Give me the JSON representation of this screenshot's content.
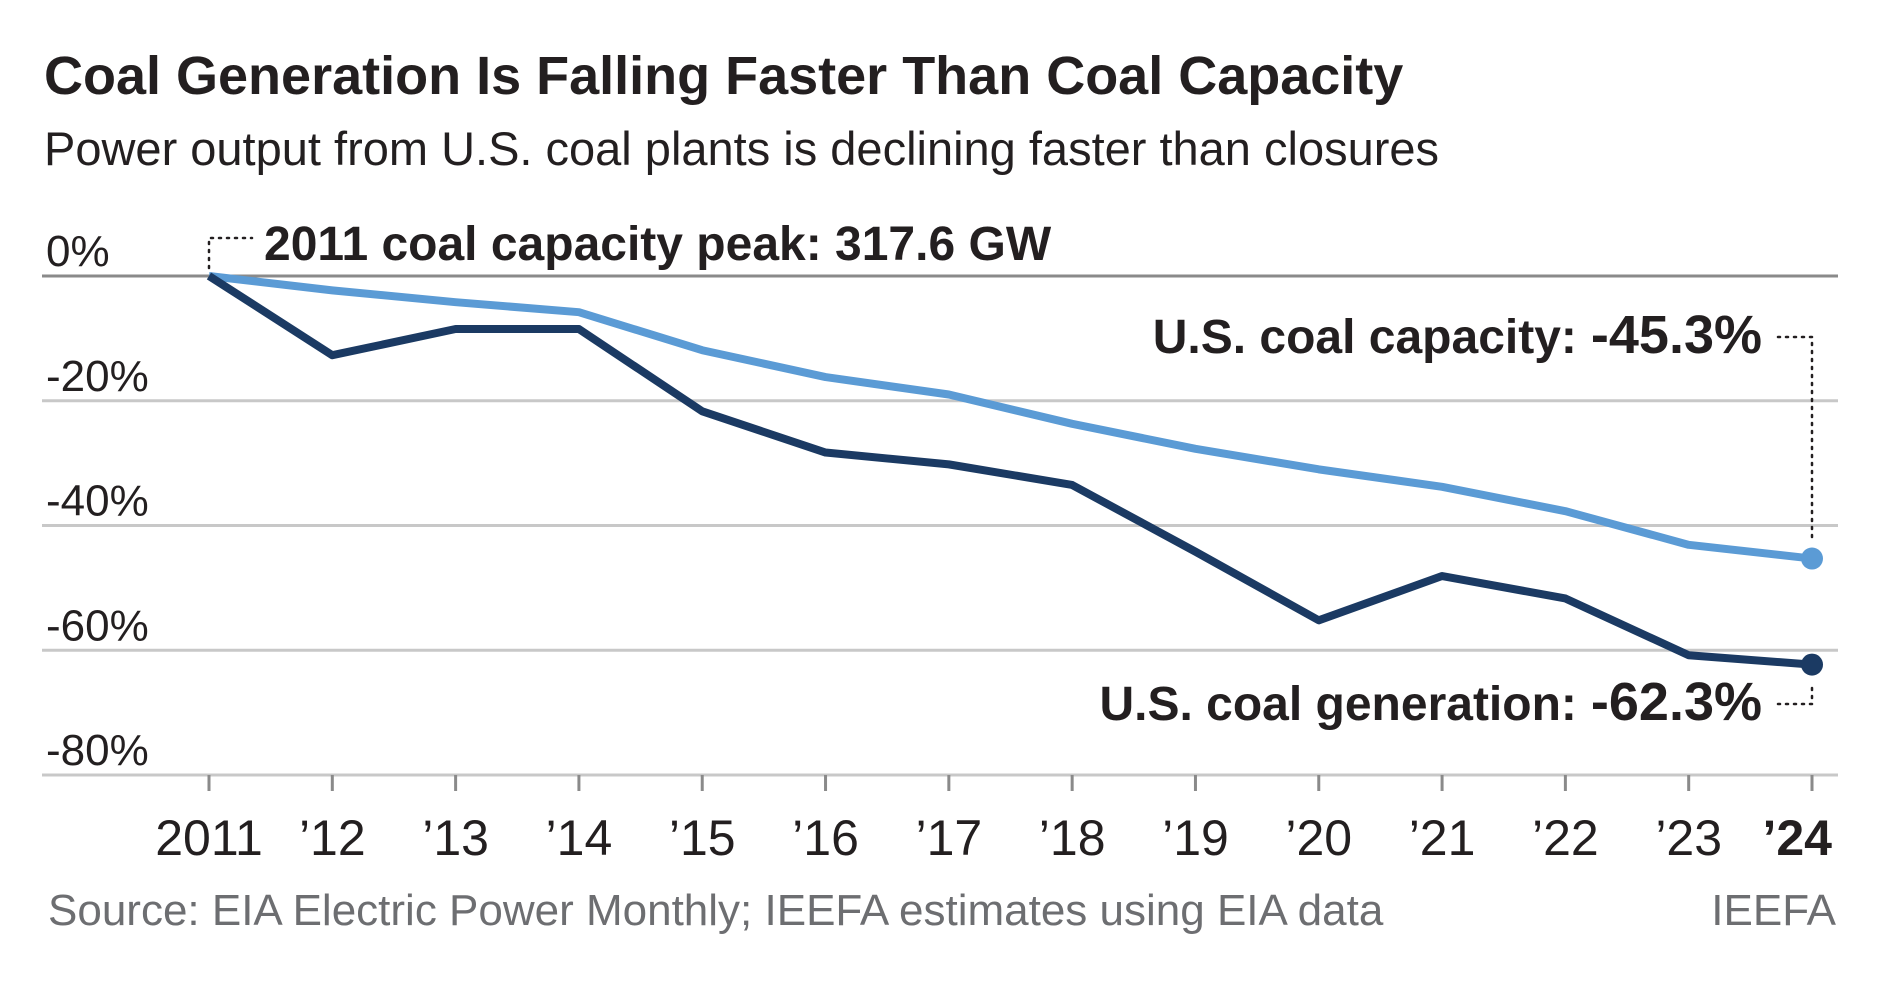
{
  "chart_data": {
    "type": "line",
    "title": "Coal Generation Is Falling Faster Than Coal Capacity",
    "subtitle": "Power output from U.S. coal plants is declining faster than closures",
    "categories": [
      "2011",
      "’12",
      "’13",
      "’14",
      "’15",
      "’16",
      "’17",
      "’18",
      "’19",
      "’20",
      "’21",
      "’22",
      "’23",
      "’24"
    ],
    "series": [
      {
        "name": "U.S. coal capacity:",
        "color": "#5b9bd5",
        "values": [
          0,
          -2.3,
          -4.2,
          -5.8,
          -11.9,
          -16.2,
          -19.0,
          -23.7,
          -27.7,
          -31.0,
          -33.8,
          -37.7,
          -43.1,
          -45.3
        ],
        "value_labels": [
          null,
          null,
          null,
          null,
          null,
          null,
          null,
          null,
          null,
          null,
          null,
          null,
          null,
          "-45.3%"
        ]
      },
      {
        "name": "U.S. coal generation:",
        "color": "#1b3a63",
        "values": [
          0,
          -12.7,
          -8.5,
          -8.5,
          -21.7,
          -28.3,
          -30.2,
          -33.5,
          -44.2,
          -55.2,
          -48.1,
          -51.7,
          -60.8,
          -62.3
        ],
        "value_labels": [
          null,
          null,
          null,
          null,
          null,
          null,
          null,
          null,
          null,
          null,
          null,
          null,
          null,
          "-62.3%"
        ]
      }
    ],
    "ylim": [
      -80,
      0
    ],
    "yticks": [
      {
        "value": 0,
        "label": "0%"
      },
      {
        "value": -20,
        "label": "-20%"
      },
      {
        "value": -40,
        "label": "-40%"
      },
      {
        "value": -60,
        "label": "-60%"
      },
      {
        "value": -80,
        "label": "-80%"
      }
    ],
    "grid": true,
    "annotation": "2011 coal capacity peak: 317.6 GW",
    "source": "Source: EIA Electric Power Monthly; IEEFA estimates using EIA data",
    "credit": "IEEFA"
  }
}
